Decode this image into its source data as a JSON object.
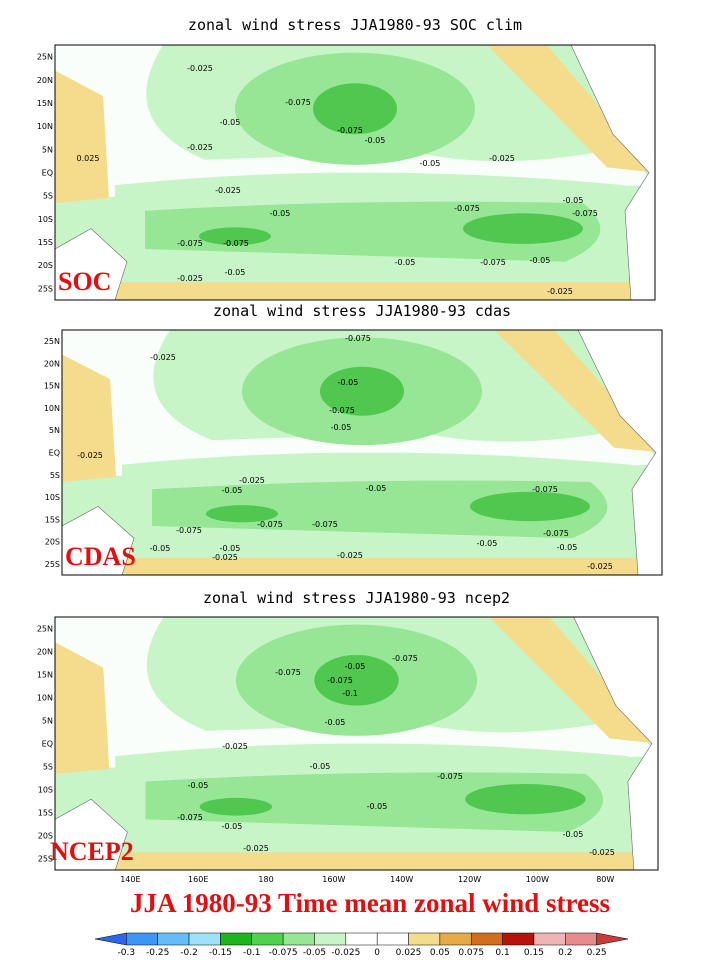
{
  "panels": [
    {
      "title": "zonal wind stress JJA1980-93 SOC clim",
      "label": "SOC",
      "contour_labels": [
        "-0.025",
        "-0.075",
        "-0.05",
        "-0.025",
        "0.025",
        "-0.075",
        "-0.05",
        "-0.05",
        "-0.025",
        "-0.025",
        "-0.05",
        "-0.075",
        "-0.05",
        "-0.075",
        "-0.075",
        "-0.075",
        "-0.05",
        "-0.05",
        "-0.075",
        "-0.05",
        "-0.025",
        "-0.025"
      ]
    },
    {
      "title": "zonal wind stress JJA1980-93 cdas",
      "label": "CDAS",
      "contour_labels": [
        "-0.075",
        "-0.025",
        "-0.05",
        "-0.075",
        "-0.05",
        "-0.025",
        "-0.025",
        "-0.05",
        "-0.05",
        "-0.075",
        "-0.075",
        "-0.075",
        "-0.075",
        "-0.075",
        "-0.05",
        "-0.05",
        "-0.05",
        "-0.05",
        "-0.025",
        "-0.025",
        "-0.025"
      ]
    },
    {
      "title": "zonal wind stress JJA1980-93 ncep2",
      "label": "NCEP2",
      "contour_labels": [
        "-0.075",
        "-0.05",
        "-0.075",
        "-0.075",
        "-0.1",
        "-0.05",
        "-0.025",
        "-0.05",
        "-0.075",
        "-0.05",
        "-0.075",
        "-0.05",
        "-0.05",
        "-0.05",
        "-0.025",
        "-0.025"
      ]
    }
  ],
  "lat_labels": [
    "25N",
    "20N",
    "15N",
    "10N",
    "5N",
    "EQ",
    "5S",
    "10S",
    "15S",
    "20S",
    "25S"
  ],
  "lon_labels": [
    "140E",
    "160E",
    "180",
    "160W",
    "140W",
    "120W",
    "100W",
    "80W"
  ],
  "caption": "JJA 1980-93 Time mean zonal wind stress",
  "colorbar": {
    "labels": [
      "-0.3",
      "-0.25",
      "-0.2",
      "-0.15",
      "-0.1",
      "-0.075",
      "-0.05",
      "-0.025",
      "0",
      "0.025",
      "0.05",
      "0.075",
      "0.1",
      "0.15",
      "0.2",
      "0.25"
    ],
    "colors": [
      "#2d64f0",
      "#3c96f5",
      "#64bef5",
      "#a0e1fa",
      "#1eb41e",
      "#50d250",
      "#96e696",
      "#c8f5c8",
      "#ffffff",
      "#ffffff",
      "#f5dc8c",
      "#e6aa46",
      "#d26e1e",
      "#b4140a",
      "#f0b4b4",
      "#e68c8c",
      "#c83c3c"
    ]
  }
}
